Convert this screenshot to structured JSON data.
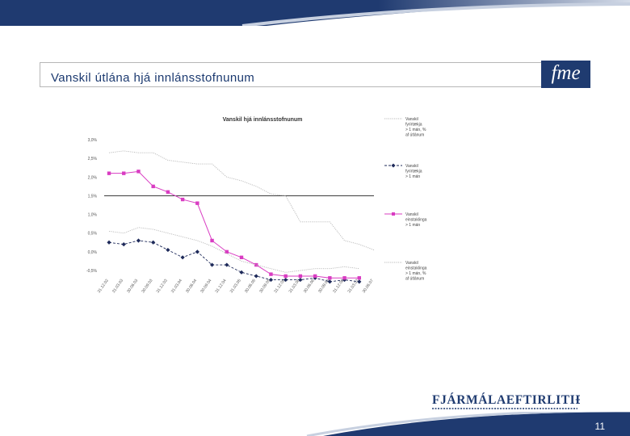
{
  "header": {
    "title": "Vanskil útlána hjá innlánsstofnunum",
    "logo": "fme"
  },
  "chart_data": {
    "type": "line",
    "title": "Vanskil hjá innlánsstofnunum",
    "categories": [
      "31.12.02",
      "31.03.03",
      "30.06.03",
      "30.09.03",
      "31.12.03",
      "31.03.04",
      "30.06.04",
      "30.09.04",
      "31.12.04",
      "31.03.05",
      "30.06.05",
      "30.09.05",
      "31.12.05",
      "31.03.06",
      "30.06.06",
      "30.09.06",
      "31.12.06",
      "31.03.07",
      "30.06.07"
    ],
    "y_ticks": [
      "3,0%",
      "2,5%",
      "2,0%",
      "1,5%",
      "1,0%",
      "0,5%",
      "0,0%",
      "-0,5%"
    ],
    "ylim": [
      -0.5,
      3.0
    ],
    "reference_line": 1.5,
    "series": [
      {
        "name": "Vanskil fyrirtækja > 1 mán, % af útlánum",
        "color": "#b8b8b8",
        "style": "dotted",
        "marker": "none",
        "values": [
          2.65,
          2.7,
          2.65,
          2.65,
          2.45,
          2.4,
          2.35,
          2.35,
          2.0,
          1.9,
          1.75,
          1.55,
          1.5,
          0.8,
          0.8,
          0.8,
          0.3,
          0.2,
          0.05
        ]
      },
      {
        "name": "Vanskil fyrirtækja > 1 mán",
        "color": "#1e2a5a",
        "style": "dashed",
        "marker": "diamond",
        "values": [
          0.25,
          0.2,
          0.3,
          0.25,
          0.05,
          -0.15,
          0.0,
          -0.35,
          -0.35,
          -0.55,
          -0.65,
          -0.75,
          -0.75,
          -0.75,
          -0.7,
          -0.8,
          -0.75,
          -0.8,
          null
        ]
      },
      {
        "name": "Vanskil einstaklinga > 1 mán",
        "color": "#d93cc2",
        "style": "solid",
        "marker": "square",
        "values": [
          2.1,
          2.1,
          2.15,
          1.75,
          1.6,
          1.4,
          1.3,
          0.3,
          0.0,
          -0.15,
          -0.35,
          -0.6,
          -0.65,
          -0.65,
          -0.65,
          -0.7,
          -0.7,
          -0.7,
          null
        ]
      },
      {
        "name": "Vanskil einstaklinga > 1 mán, % af útlánum",
        "color": "#b8b8b8",
        "style": "dotted",
        "marker": "none",
        "values": [
          0.55,
          0.5,
          0.65,
          0.6,
          0.5,
          0.4,
          0.3,
          0.15,
          -0.05,
          -0.25,
          -0.35,
          -0.45,
          -0.55,
          -0.5,
          -0.45,
          -0.45,
          -0.4,
          -0.45,
          null
        ]
      }
    ],
    "legend_position": "right",
    "grid": false
  },
  "footer": {
    "brand": "FJÁRMÁLAEFTIRLITIÐ",
    "page_number": "11"
  }
}
